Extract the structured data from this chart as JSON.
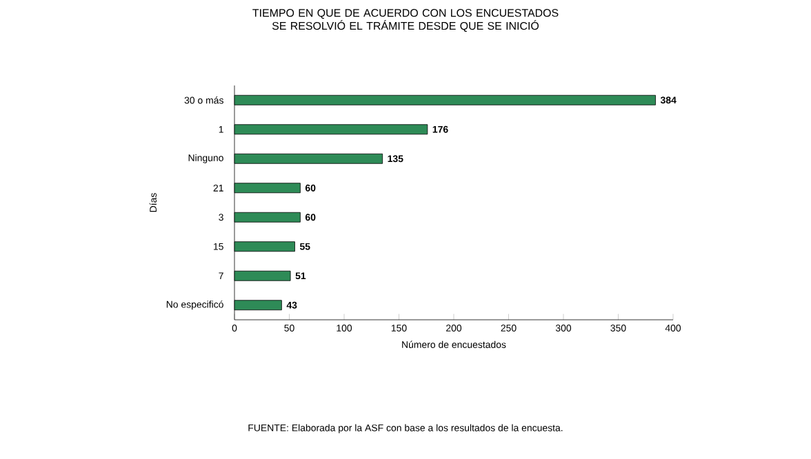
{
  "chart_data": {
    "type": "bar",
    "orientation": "horizontal",
    "title": "TIEMPO EN QUE DE ACUERDO CON LOS ENCUESTADOS SE RESOLVIÓ EL TRÁMITE DESDE QUE SE INICIÓ",
    "xlabel": "Número de encuestados",
    "ylabel": "Días",
    "categories": [
      "30 o más",
      "1",
      "Ninguno",
      "21",
      "3",
      "15",
      "7",
      "No especificó"
    ],
    "values": [
      384,
      176,
      135,
      60,
      60,
      55,
      51,
      43
    ],
    "color": "#2e8b57",
    "xlim": [
      0,
      400
    ],
    "xticks": [
      0,
      50,
      100,
      150,
      200,
      250,
      300,
      350,
      400
    ],
    "data_labels": true,
    "annotations": [
      "FUENTE: Elaborada por la ASF con base a los resultados de la encuesta."
    ]
  }
}
